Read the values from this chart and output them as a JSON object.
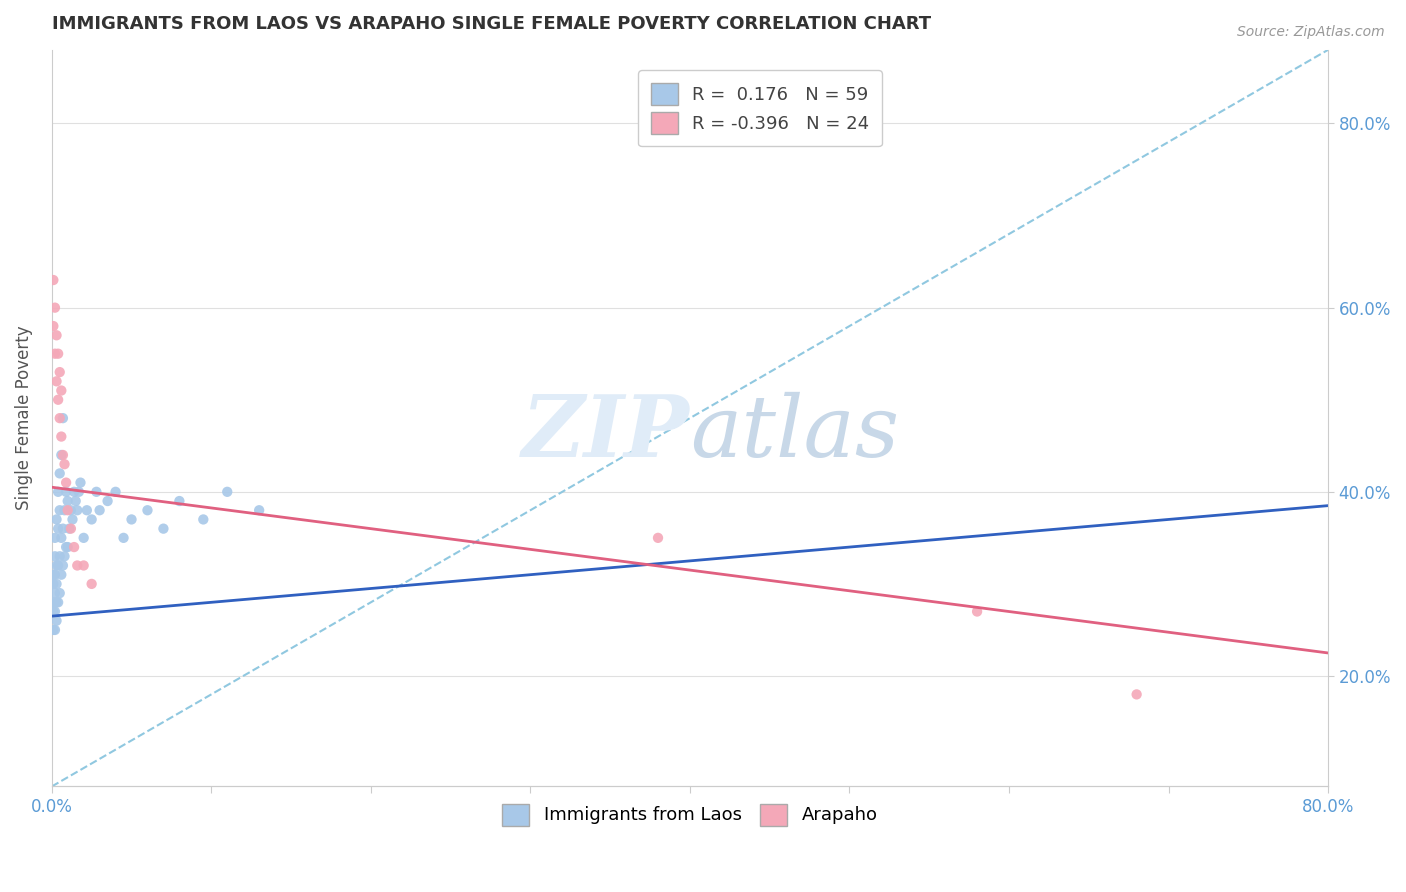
{
  "title": "IMMIGRANTS FROM LAOS VS ARAPAHO SINGLE FEMALE POVERTY CORRELATION CHART",
  "source": "Source: ZipAtlas.com",
  "ylabel": "Single Female Poverty",
  "legend_label1": "Immigrants from Laos",
  "legend_label2": "Arapaho",
  "R1": 0.176,
  "N1": 59,
  "R2": -0.396,
  "N2": 24,
  "color_blue": "#A8C8E8",
  "color_pink": "#F4A8B8",
  "line_blue": "#3060C0",
  "line_pink": "#E06080",
  "dash_color": "#90C8E0",
  "xlim": [
    0.0,
    0.8
  ],
  "ylim": [
    0.08,
    0.88
  ],
  "yticks": [
    0.2,
    0.4,
    0.6,
    0.8
  ],
  "blue_trend_x": [
    0.0,
    0.8
  ],
  "blue_trend_y": [
    0.265,
    0.385
  ],
  "pink_trend_x": [
    0.0,
    0.8
  ],
  "pink_trend_y": [
    0.405,
    0.225
  ],
  "blue_points_x": [
    0.001,
    0.001,
    0.001,
    0.001,
    0.001,
    0.002,
    0.002,
    0.002,
    0.002,
    0.002,
    0.002,
    0.003,
    0.003,
    0.003,
    0.003,
    0.003,
    0.004,
    0.004,
    0.004,
    0.004,
    0.005,
    0.005,
    0.005,
    0.005,
    0.006,
    0.006,
    0.006,
    0.007,
    0.007,
    0.007,
    0.008,
    0.008,
    0.009,
    0.009,
    0.01,
    0.01,
    0.011,
    0.012,
    0.013,
    0.014,
    0.015,
    0.016,
    0.017,
    0.018,
    0.02,
    0.022,
    0.025,
    0.028,
    0.03,
    0.035,
    0.04,
    0.045,
    0.05,
    0.06,
    0.07,
    0.08,
    0.095,
    0.11,
    0.13
  ],
  "blue_points_y": [
    0.25,
    0.27,
    0.28,
    0.3,
    0.31,
    0.25,
    0.27,
    0.29,
    0.31,
    0.33,
    0.35,
    0.26,
    0.28,
    0.3,
    0.32,
    0.37,
    0.28,
    0.32,
    0.36,
    0.4,
    0.29,
    0.33,
    0.38,
    0.42,
    0.31,
    0.35,
    0.44,
    0.32,
    0.36,
    0.48,
    0.33,
    0.38,
    0.34,
    0.4,
    0.34,
    0.39,
    0.36,
    0.38,
    0.37,
    0.4,
    0.39,
    0.38,
    0.4,
    0.41,
    0.35,
    0.38,
    0.37,
    0.4,
    0.38,
    0.39,
    0.4,
    0.35,
    0.37,
    0.38,
    0.36,
    0.39,
    0.37,
    0.4,
    0.38
  ],
  "pink_points_x": [
    0.001,
    0.001,
    0.002,
    0.002,
    0.003,
    0.003,
    0.004,
    0.004,
    0.005,
    0.005,
    0.006,
    0.006,
    0.007,
    0.008,
    0.009,
    0.01,
    0.012,
    0.014,
    0.016,
    0.02,
    0.025,
    0.38,
    0.58,
    0.68
  ],
  "pink_points_y": [
    0.58,
    0.63,
    0.55,
    0.6,
    0.52,
    0.57,
    0.5,
    0.55,
    0.48,
    0.53,
    0.46,
    0.51,
    0.44,
    0.43,
    0.41,
    0.38,
    0.36,
    0.34,
    0.32,
    0.32,
    0.3,
    0.35,
    0.27,
    0.18
  ]
}
